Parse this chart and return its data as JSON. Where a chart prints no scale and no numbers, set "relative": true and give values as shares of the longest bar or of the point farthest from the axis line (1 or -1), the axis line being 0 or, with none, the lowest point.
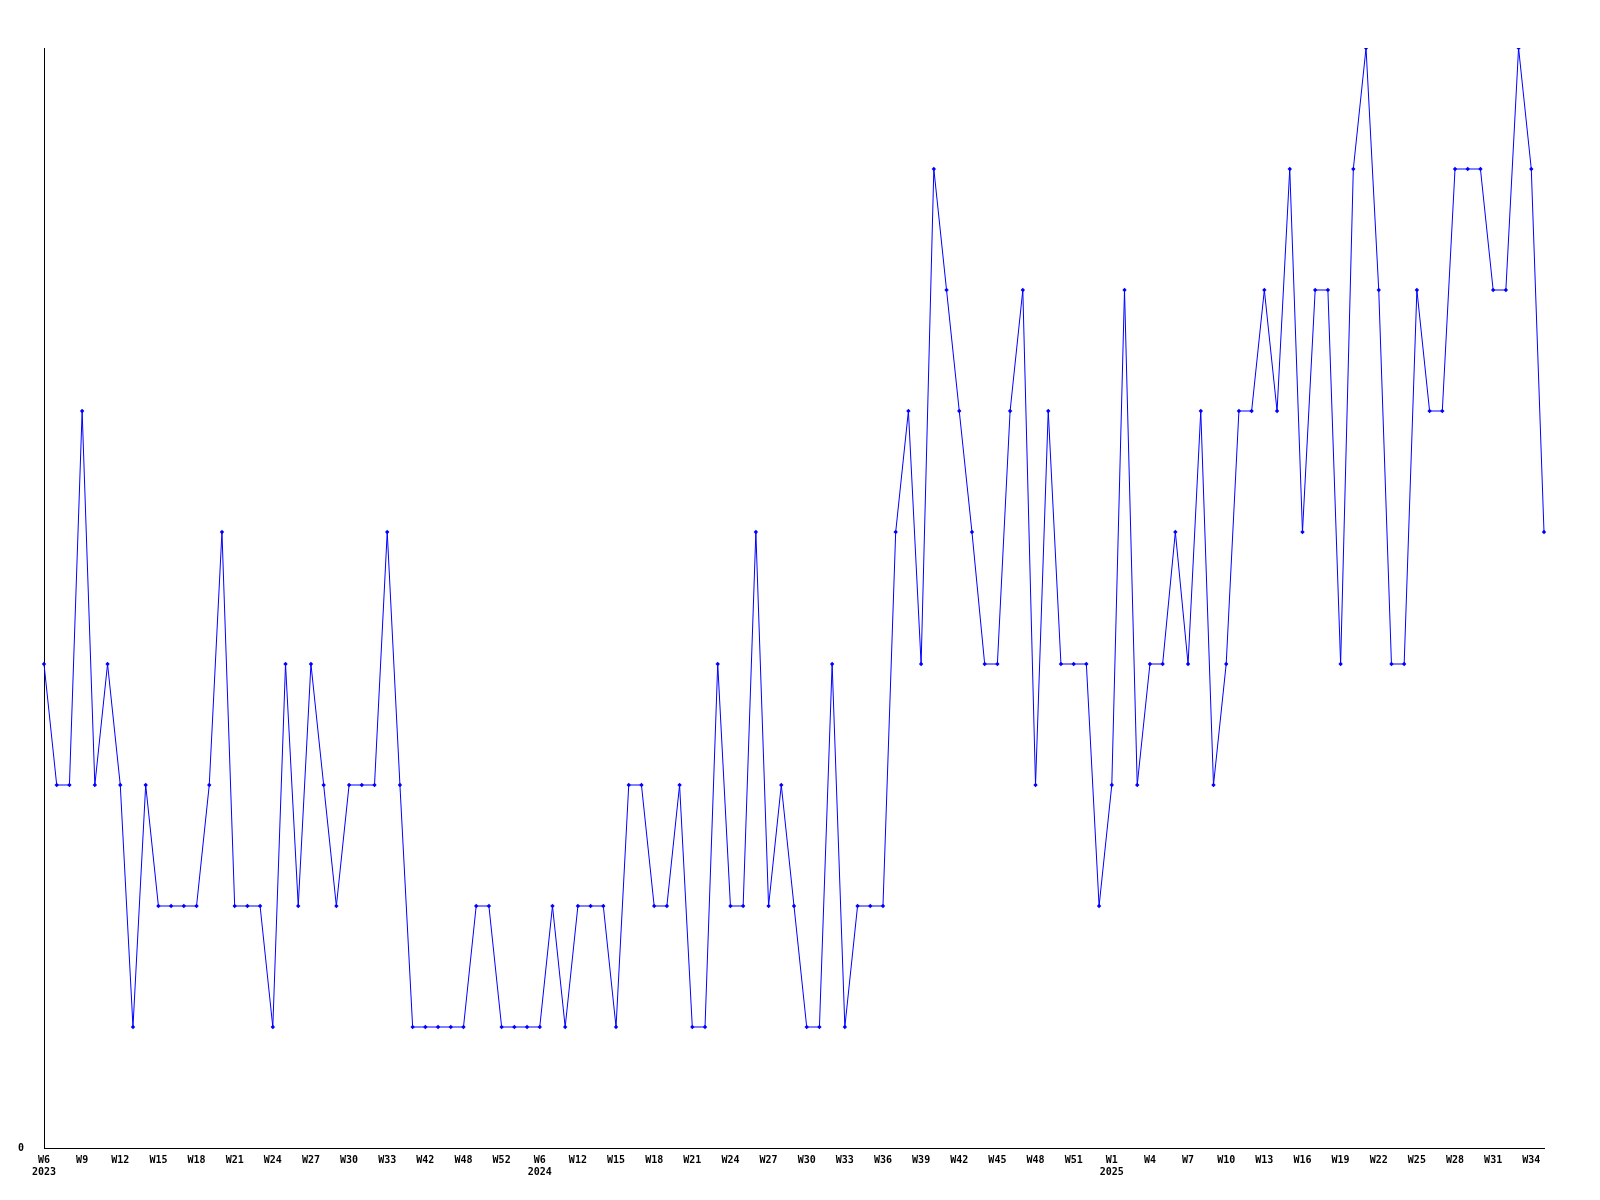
{
  "chart_data": {
    "type": "line",
    "relative": true,
    "marker": "diamond",
    "line_style": "solid",
    "grid": false,
    "legend": false,
    "annotations": [
      "0"
    ],
    "categories": [
      "W6\n2023",
      null,
      null,
      "W9",
      null,
      null,
      "W12",
      null,
      null,
      "W15",
      null,
      null,
      "W18",
      null,
      null,
      "W21",
      null,
      null,
      "W24",
      null,
      null,
      "W27",
      null,
      null,
      "W30",
      null,
      null,
      "W33",
      null,
      null,
      "W42",
      null,
      null,
      "W48",
      null,
      null,
      "W52",
      null,
      null,
      "W6\n2024",
      null,
      null,
      "W12",
      null,
      null,
      "W15",
      null,
      null,
      "W18",
      null,
      null,
      "W21",
      null,
      null,
      "W24",
      null,
      null,
      "W27",
      null,
      null,
      "W30",
      null,
      null,
      "W33",
      null,
      null,
      "W36",
      null,
      null,
      "W39",
      null,
      null,
      "W42",
      null,
      null,
      "W45",
      null,
      null,
      "W48",
      null,
      null,
      "W51",
      null,
      null,
      "W1\n2025",
      null,
      null,
      "W4",
      null,
      null,
      "W7",
      null,
      null,
      "W10",
      null,
      null,
      "W13",
      null,
      null,
      "W16",
      null,
      null,
      "W19",
      null,
      null,
      "W22",
      null,
      null,
      "W25",
      null,
      null,
      "W28",
      null,
      null,
      "W31",
      null,
      null,
      "W34",
      null
    ],
    "series": [
      {
        "color": "#0000ff",
        "values": [
          0.44,
          0.33,
          0.33,
          0.67,
          0.33,
          0.44,
          0.33,
          0.11,
          0.33,
          0.22,
          0.22,
          0.22,
          0.22,
          0.33,
          0.56,
          0.22,
          0.22,
          0.22,
          0.11,
          0.44,
          0.22,
          0.44,
          0.33,
          0.22,
          0.33,
          0.33,
          0.33,
          0.56,
          0.33,
          0.11,
          0.11,
          0.11,
          0.11,
          0.11,
          0.22,
          0.22,
          0.11,
          0.11,
          0.11,
          0.11,
          0.22,
          0.11,
          0.22,
          0.22,
          0.22,
          0.11,
          0.33,
          0.33,
          0.22,
          0.22,
          0.33,
          0.11,
          0.11,
          0.44,
          0.22,
          0.22,
          0.56,
          0.22,
          0.33,
          0.22,
          0.11,
          0.11,
          0.44,
          0.11,
          0.22,
          0.22,
          0.22,
          0.56,
          0.67,
          0.44,
          0.89,
          0.78,
          0.67,
          0.56,
          0.44,
          0.44,
          0.67,
          0.78,
          0.33,
          0.67,
          0.44,
          0.44,
          0.44,
          0.22,
          0.33,
          0.78,
          0.33,
          0.44,
          0.44,
          0.56,
          0.44,
          0.67,
          0.33,
          0.44,
          0.67,
          0.67,
          0.78,
          0.67,
          0.89,
          0.56,
          0.78,
          0.78,
          0.44,
          0.89,
          1,
          0.78,
          0.44,
          0.44,
          0.78,
          0.67,
          0.67,
          0.89,
          0.89,
          0.89,
          0.78,
          0.78,
          1,
          0.89,
          0.56
        ]
      }
    ]
  }
}
